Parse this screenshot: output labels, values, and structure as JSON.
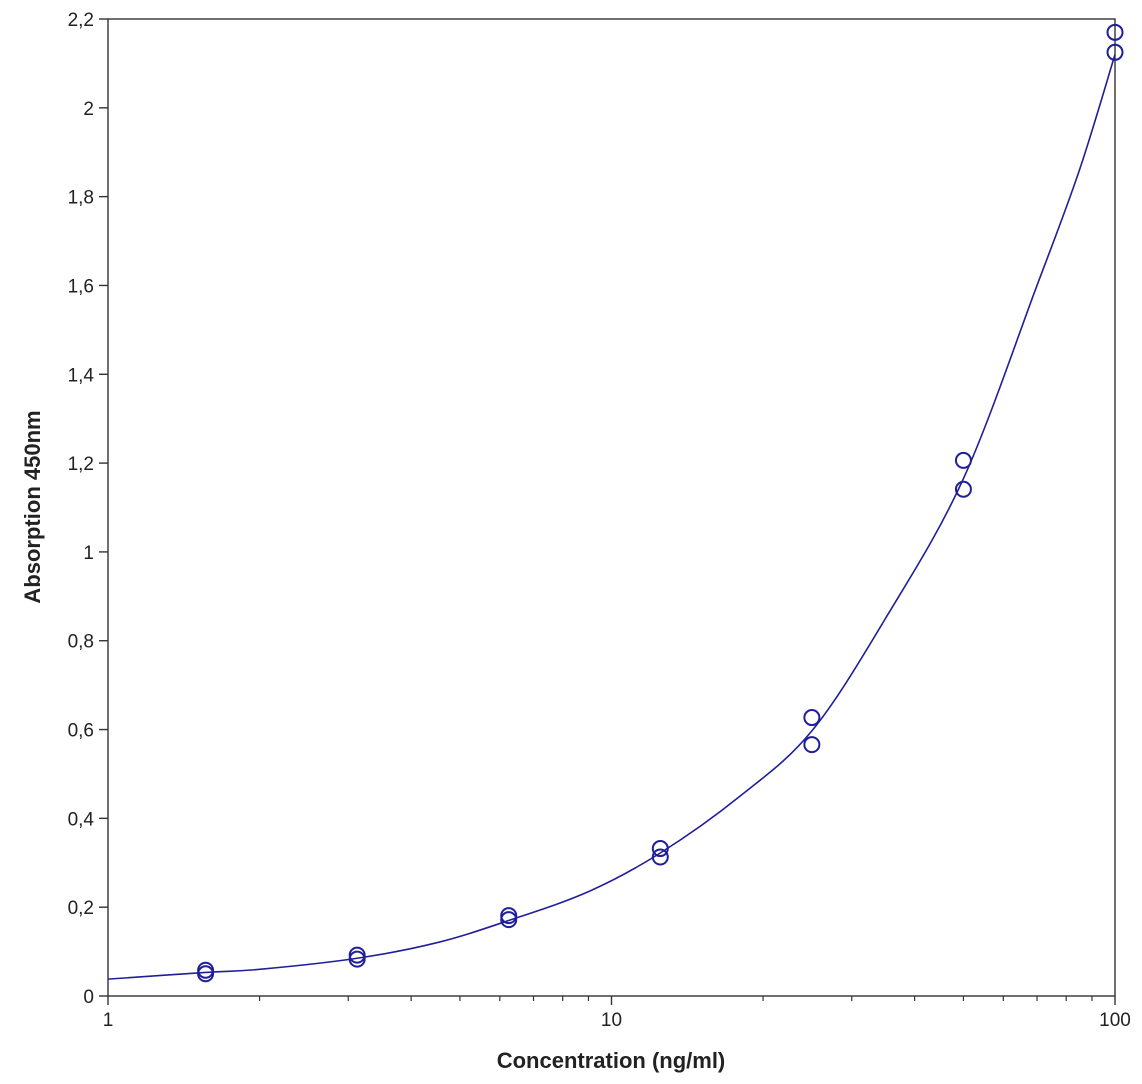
{
  "chart_data": {
    "type": "scatter",
    "title": "",
    "xlabel": "Concentration (ng/ml)",
    "ylabel": "Absorption 450nm",
    "x_scale": "log",
    "xlim": [
      1,
      100
    ],
    "ylim": [
      0,
      2.2
    ],
    "x_ticks": [
      {
        "value": 1,
        "label": "1"
      },
      {
        "value": 10,
        "label": "10"
      },
      {
        "value": 100,
        "label": "100"
      }
    ],
    "y_ticks": [
      {
        "value": 0,
        "label": "0"
      },
      {
        "value": 0.2,
        "label": "0,2"
      },
      {
        "value": 0.4,
        "label": "0,4"
      },
      {
        "value": 0.6,
        "label": "0,6"
      },
      {
        "value": 0.8,
        "label": "0,8"
      },
      {
        "value": 1.0,
        "label": "1"
      },
      {
        "value": 1.2,
        "label": "1,2"
      },
      {
        "value": 1.4,
        "label": "1,4"
      },
      {
        "value": 1.6,
        "label": "1,6"
      },
      {
        "value": 1.8,
        "label": "1,8"
      },
      {
        "value": 2.0,
        "label": "2"
      },
      {
        "value": 2.2,
        "label": "2,2"
      }
    ],
    "grid": false,
    "legend": "none",
    "series": [
      {
        "kind": "points",
        "marker": "circle-open",
        "color": "#1f1f99",
        "points": [
          {
            "x": 1.5625,
            "y": 0.058
          },
          {
            "x": 1.5625,
            "y": 0.05
          },
          {
            "x": 3.125,
            "y": 0.092
          },
          {
            "x": 3.125,
            "y": 0.083
          },
          {
            "x": 6.25,
            "y": 0.181
          },
          {
            "x": 6.25,
            "y": 0.172
          },
          {
            "x": 12.5,
            "y": 0.332
          },
          {
            "x": 12.5,
            "y": 0.313
          },
          {
            "x": 25,
            "y": 0.627
          },
          {
            "x": 25,
            "y": 0.566
          },
          {
            "x": 50,
            "y": 1.206
          },
          {
            "x": 50,
            "y": 1.141
          },
          {
            "x": 100,
            "y": 2.17
          },
          {
            "x": 100,
            "y": 2.125
          }
        ]
      },
      {
        "kind": "fit-curve",
        "color": "#1f1f99",
        "points": [
          {
            "x": 1.0,
            "y": 0.038
          },
          {
            "x": 1.5625,
            "y": 0.053
          },
          {
            "x": 2.0,
            "y": 0.06
          },
          {
            "x": 3.125,
            "y": 0.085
          },
          {
            "x": 4.5,
            "y": 0.12
          },
          {
            "x": 6.25,
            "y": 0.17
          },
          {
            "x": 9.0,
            "y": 0.235
          },
          {
            "x": 12.5,
            "y": 0.322
          },
          {
            "x": 18.0,
            "y": 0.45
          },
          {
            "x": 25.0,
            "y": 0.597
          },
          {
            "x": 35.0,
            "y": 0.85
          },
          {
            "x": 50.0,
            "y": 1.165
          },
          {
            "x": 70.0,
            "y": 1.6
          },
          {
            "x": 85.0,
            "y": 1.86
          },
          {
            "x": 100.0,
            "y": 2.12
          }
        ]
      }
    ]
  }
}
